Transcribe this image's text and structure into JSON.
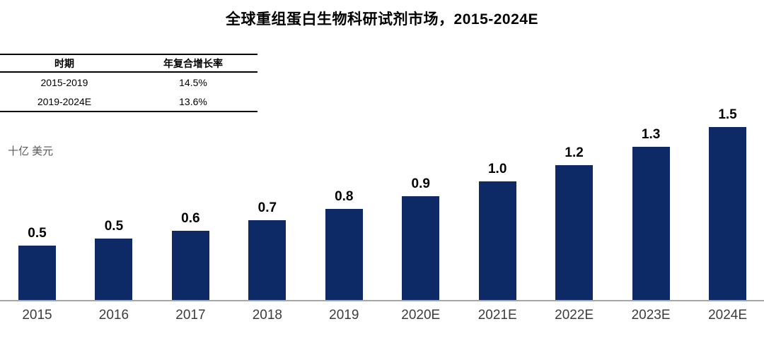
{
  "title": "全球重组蛋白生物科研试剂市场，2015-2024E",
  "cagr_table": {
    "headers": [
      "时期",
      "年复合增长率"
    ],
    "rows": [
      {
        "period": "2015-2019",
        "cagr": "14.5%"
      },
      {
        "period": "2019-2024E",
        "cagr": "13.6%"
      }
    ]
  },
  "unit_label": "十亿 美元",
  "chart_data": {
    "type": "bar",
    "title": "全球重组蛋白生物科研试剂市场，2015-2024E",
    "xlabel": "",
    "ylabel": "十亿 美元",
    "categories": [
      "2015",
      "2016",
      "2017",
      "2018",
      "2019",
      "2020E",
      "2021E",
      "2022E",
      "2023E",
      "2024E"
    ],
    "values": [
      0.5,
      0.5,
      0.6,
      0.7,
      0.8,
      0.9,
      1.0,
      1.2,
      1.3,
      1.5
    ],
    "data_labels": [
      "0.5",
      "0.5",
      "0.6",
      "0.7",
      "0.8",
      "0.9",
      "1.0",
      "1.2",
      "1.3",
      "1.5"
    ],
    "estimated_precise_values": [
      0.47,
      0.53,
      0.6,
      0.69,
      0.79,
      0.9,
      1.03,
      1.17,
      1.33,
      1.5
    ],
    "ylim": [
      0,
      1.6
    ],
    "grid": false,
    "legend": false,
    "bar_color": "#0e2a66",
    "axis_line_color": "#a6a6a6"
  }
}
